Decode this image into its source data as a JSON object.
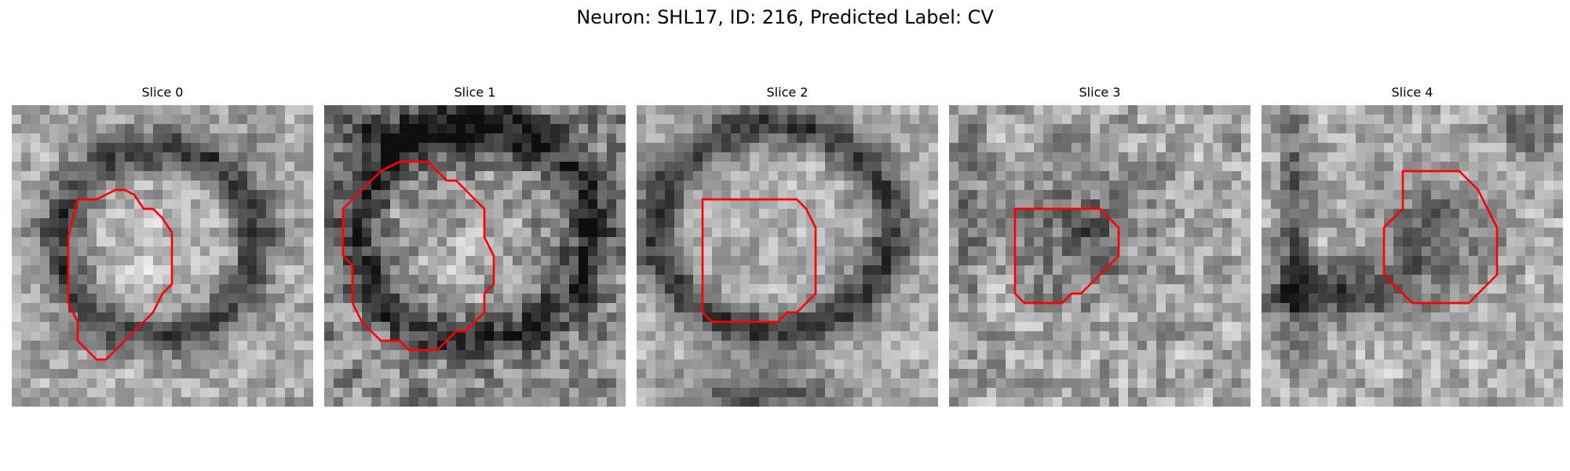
{
  "figure": {
    "title": "Neuron: SHL17, ID: 216, Predicted Label: CV"
  },
  "panels": [
    {
      "title": "Slice 0"
    },
    {
      "title": "Slice 1"
    },
    {
      "title": "Slice 2"
    },
    {
      "title": "Slice 3"
    },
    {
      "title": "Slice 4"
    }
  ],
  "colors": {
    "contour": "#ff0000",
    "background": "#ffffff"
  }
}
